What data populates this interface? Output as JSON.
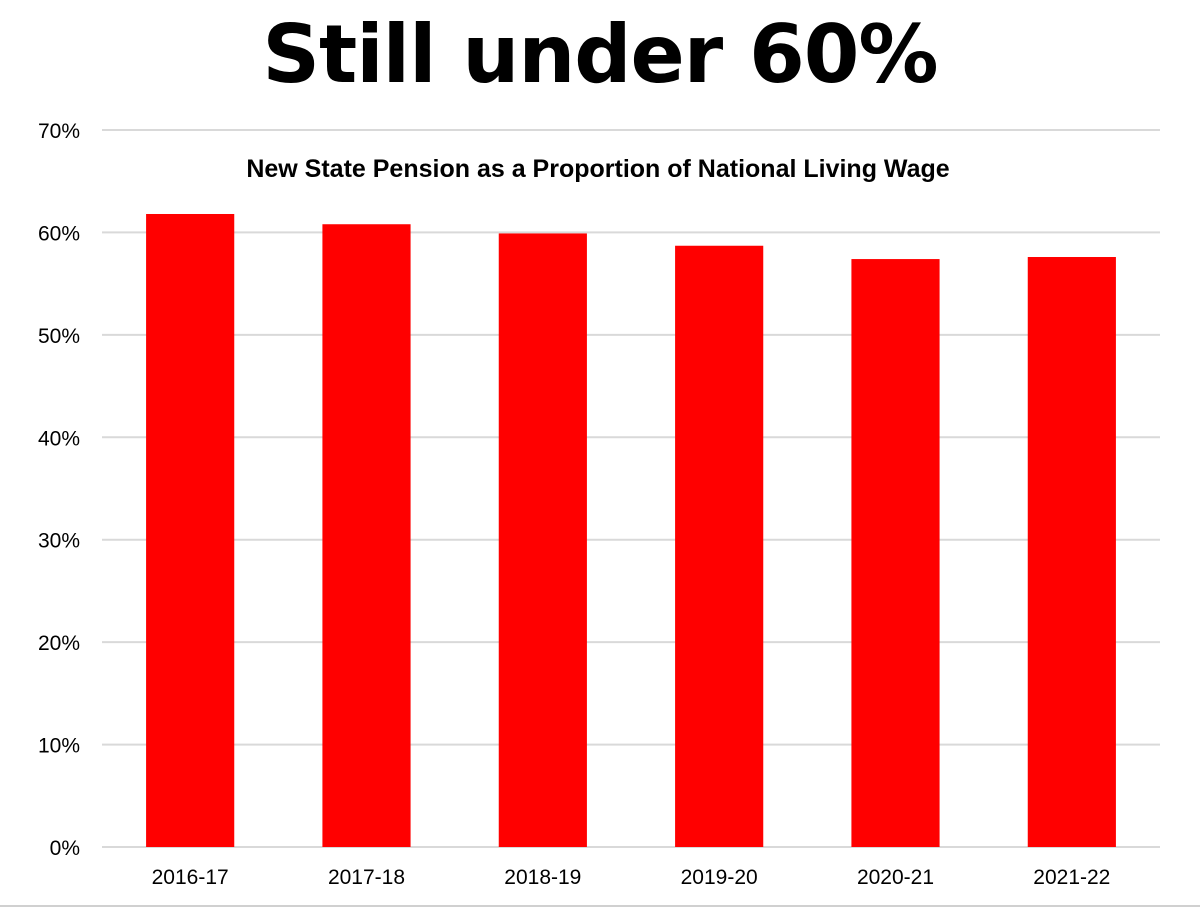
{
  "headline": "Still under 60%",
  "chart_data": {
    "type": "bar",
    "title": "New State Pension as a Proportion of National Living Wage",
    "categories": [
      "2016-17",
      "2017-18",
      "2018-19",
      "2019-20",
      "2020-21",
      "2021-22"
    ],
    "values": [
      61.8,
      60.8,
      59.9,
      58.7,
      57.4,
      57.6
    ],
    "xlabel": "",
    "ylabel": "",
    "ylim": [
      0,
      70
    ],
    "yticks": [
      "0%",
      "10%",
      "20%",
      "30%",
      "40%",
      "50%",
      "60%",
      "70%"
    ],
    "grid": true,
    "bar_color": "#ff0000",
    "grid_color": "#d9d9d9"
  }
}
